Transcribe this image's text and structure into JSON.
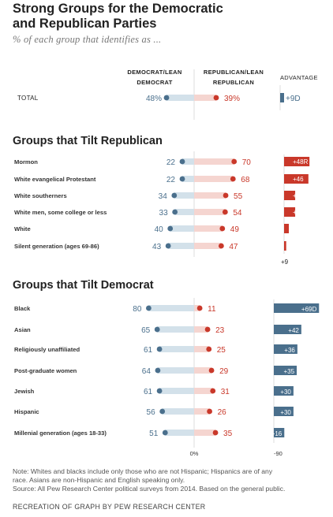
{
  "title_line1": "Strong Groups for the Democratic",
  "title_line2": "and Republican Parties",
  "subtitle": "% of each group that identifies as ...",
  "colors": {
    "democrat": "#4a6f8c",
    "democrat_bar": "#d3e1ea",
    "republican": "#c9382a",
    "republican_bar": "#f5d5d0",
    "adv_dem": "#4a6f8c",
    "adv_rep": "#c9382a"
  },
  "header": {
    "dem_line1": "DEMOCRAT/LEAN",
    "dem_line2": "DEMOCRAT",
    "rep_line1": "REPUBLICAN/LEAN",
    "rep_line2": "REPUBLICAN",
    "advantage": "ADVANTAGE"
  },
  "chart_data": {
    "type": "dot-plot",
    "title": "Strong Groups for the Democratic and Republican Parties",
    "subtitle": "% of each group that identifies as ...",
    "series": [
      {
        "name": "Democrat/Lean Democrat",
        "color": "#4a6f8c"
      },
      {
        "name": "Republican/Lean Republican",
        "color": "#c9382a"
      }
    ],
    "total": {
      "label": "TOTAL",
      "dem": 48,
      "rep": 39,
      "dem_text": "48%",
      "rep_text": "39%",
      "advantage": 9,
      "party": "D",
      "adv_text": "+9D"
    },
    "sections": [
      {
        "heading": "Groups that Tilt Republican",
        "advantage_scale_label": "+9",
        "rows": [
          {
            "label": "Mormon",
            "dem": 22,
            "rep": 70,
            "advantage": 48,
            "party": "R",
            "adv_text": "+48R"
          },
          {
            "label": "White evangelical Protestant",
            "dem": 22,
            "rep": 68,
            "advantage": 46,
            "party": "R",
            "adv_text": "+46"
          },
          {
            "label": "White southerners",
            "dem": 34,
            "rep": 55,
            "advantage": 21,
            "party": "R",
            "adv_text": "+21"
          },
          {
            "label": "White men, some college or less",
            "dem": 33,
            "rep": 54,
            "advantage": 21,
            "party": "R",
            "adv_text": "+21"
          },
          {
            "label": "White",
            "dem": 40,
            "rep": 49,
            "advantage": 9,
            "party": "R",
            "adv_text": "+9"
          },
          {
            "label": "Silent generation (ages 69-86)",
            "dem": 43,
            "rep": 47,
            "advantage": 4,
            "party": "R",
            "adv_text": "+4"
          }
        ]
      },
      {
        "heading": "Groups that Tilt Democrat",
        "rows": [
          {
            "label": "Black",
            "dem": 80,
            "rep": 11,
            "advantage": 69,
            "party": "D",
            "adv_text": "+69D"
          },
          {
            "label": "Asian",
            "dem": 65,
            "rep": 23,
            "advantage": 42,
            "party": "D",
            "adv_text": "+42"
          },
          {
            "label": "Religiously unaffiliated",
            "dem": 61,
            "rep": 25,
            "advantage": 36,
            "party": "D",
            "adv_text": "+36"
          },
          {
            "label": "Post-graduate women",
            "dem": 64,
            "rep": 29,
            "advantage": 35,
            "party": "D",
            "adv_text": "+35"
          },
          {
            "label": "Jewish",
            "dem": 61,
            "rep": 31,
            "advantage": 30,
            "party": "D",
            "adv_text": "+30"
          },
          {
            "label": "Hispanic",
            "dem": 56,
            "rep": 26,
            "advantage": 30,
            "party": "D",
            "adv_text": "+30"
          },
          {
            "label": "Millenial generation (ages 18-33)",
            "dem": 51,
            "rep": 35,
            "advantage": 16,
            "party": "D",
            "adv_text": "+16"
          }
        ]
      }
    ],
    "axis": {
      "center_label": "0%",
      "adv_label": "-90"
    }
  },
  "footer_line1": "Note: Whites and blacks include only those who are not Hispanic; Hispanics are of any",
  "footer_line2": "race. Asians are non-Hispanic and English speaking only.",
  "footer_line3": "Source: All Pew Research Center political surveys from 2014. Based on the general public.",
  "credit": "RECREATION OF GRAPH BY PEW RESEARCH CENTER"
}
